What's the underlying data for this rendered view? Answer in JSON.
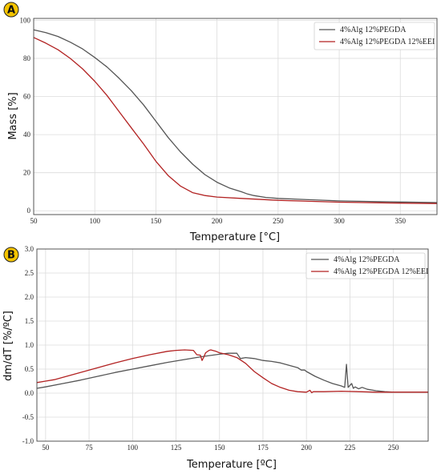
{
  "chart_data": [
    {
      "type": "line",
      "panel_label": "A",
      "xlabel": "Temperature [°C]",
      "ylabel": "Mass [%]",
      "xlim": [
        50,
        380
      ],
      "ylim": [
        -2,
        101
      ],
      "xticks": [
        50,
        100,
        150,
        200,
        250,
        300,
        350
      ],
      "yticks": [
        0,
        20,
        40,
        60,
        80,
        100
      ],
      "grid": true,
      "legend_position": "top-right",
      "series": [
        {
          "name": "4%Alg 12%PEGDA",
          "color": "#555555",
          "x": [
            50,
            60,
            70,
            80,
            90,
            100,
            110,
            120,
            130,
            140,
            150,
            160,
            170,
            180,
            190,
            200,
            210,
            220,
            225,
            230,
            240,
            250,
            275,
            300,
            325,
            350,
            380
          ],
          "y": [
            95,
            93.5,
            91.5,
            88.5,
            85,
            80.5,
            75.5,
            69.5,
            63,
            55.5,
            47,
            38.5,
            31,
            24.5,
            19,
            15,
            12,
            10,
            8.8,
            8,
            7,
            6.5,
            5.8,
            5.2,
            4.9,
            4.6,
            4.3
          ]
        },
        {
          "name": "4%Alg 12%PEGDA 12%EEI",
          "color": "#b22222",
          "x": [
            50,
            60,
            70,
            80,
            90,
            100,
            110,
            120,
            130,
            140,
            150,
            160,
            170,
            180,
            190,
            200,
            220,
            250,
            300,
            350,
            380
          ],
          "y": [
            91,
            88,
            84.5,
            80,
            74.5,
            68,
            60.5,
            52,
            43.5,
            35,
            26,
            18.5,
            13,
            9.5,
            8,
            7.2,
            6.5,
            5.5,
            4.5,
            4,
            3.8
          ]
        }
      ]
    },
    {
      "type": "line",
      "panel_label": "B",
      "xlabel": "Temperature [ºC]",
      "ylabel": "dm/dT [%/ºC]",
      "xlim": [
        45,
        270
      ],
      "ylim": [
        -1.0,
        3.0
      ],
      "xticks": [
        50,
        75,
        100,
        125,
        150,
        175,
        200,
        225,
        250
      ],
      "yticks": [
        -1.0,
        -0.5,
        0.0,
        0.5,
        1.0,
        1.5,
        2.0,
        2.5,
        3.0
      ],
      "grid": true,
      "legend_position": "top-right",
      "series": [
        {
          "name": "4%Alg 12%PEGDA",
          "color": "#555555",
          "x": [
            45,
            50,
            60,
            70,
            80,
            90,
            100,
            110,
            120,
            130,
            140,
            150,
            155,
            160,
            162,
            165,
            170,
            175,
            180,
            185,
            190,
            195,
            197,
            199,
            200,
            205,
            210,
            215,
            220,
            222,
            223,
            224,
            226,
            227,
            228,
            230,
            232,
            235,
            240,
            245,
            250,
            260,
            270
          ],
          "y": [
            0.1,
            0.13,
            0.2,
            0.27,
            0.35,
            0.43,
            0.5,
            0.57,
            0.64,
            0.7,
            0.76,
            0.81,
            0.83,
            0.83,
            0.72,
            0.74,
            0.72,
            0.68,
            0.66,
            0.63,
            0.58,
            0.53,
            0.48,
            0.48,
            0.45,
            0.35,
            0.27,
            0.2,
            0.15,
            0.12,
            0.6,
            0.12,
            0.2,
            0.1,
            0.13,
            0.09,
            0.12,
            0.08,
            0.05,
            0.03,
            0.02,
            0.02,
            0.02
          ]
        },
        {
          "name": "4%Alg 12%PEGDA 12%EEI",
          "color": "#b22222",
          "x": [
            45,
            50,
            55,
            60,
            70,
            80,
            90,
            100,
            110,
            120,
            125,
            130,
            135,
            137,
            139,
            140,
            141,
            142,
            144,
            145,
            146,
            148,
            150,
            155,
            160,
            165,
            170,
            175,
            180,
            185,
            190,
            195,
            200,
            202,
            203,
            204,
            206,
            210,
            220,
            230,
            240,
            250,
            260,
            270
          ],
          "y": [
            0.22,
            0.25,
            0.28,
            0.33,
            0.43,
            0.53,
            0.63,
            0.72,
            0.8,
            0.87,
            0.89,
            0.9,
            0.89,
            0.8,
            0.79,
            0.68,
            0.75,
            0.84,
            0.89,
            0.9,
            0.89,
            0.87,
            0.84,
            0.8,
            0.74,
            0.62,
            0.45,
            0.32,
            0.2,
            0.12,
            0.06,
            0.03,
            0.02,
            0.06,
            0.01,
            0.03,
            0.03,
            0.03,
            0.04,
            0.03,
            0.02,
            0.02,
            0.02,
            0.02
          ]
        }
      ]
    }
  ]
}
